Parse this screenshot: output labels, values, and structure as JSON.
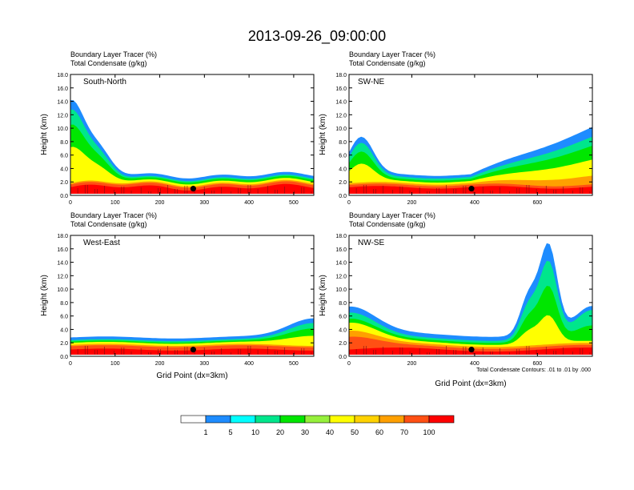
{
  "figure": {
    "title": "2013-09-26_09:00:00",
    "footnote": "Total Condensate Contours: .01 to .01 by .000"
  },
  "colorbar": {
    "labels": [
      "1",
      "5",
      "10",
      "20",
      "30",
      "40",
      "50",
      "60",
      "70",
      "100"
    ],
    "colors": [
      "#ffffff",
      "#1e8cff",
      "#00ffff",
      "#00e68c",
      "#00e600",
      "#96f03c",
      "#ffff00",
      "#ffd200",
      "#ffa000",
      "#ff5014",
      "#ff0000"
    ]
  },
  "chart_data": [
    {
      "type": "heatmap",
      "name": "South-North",
      "title_lines": [
        "Boundary Layer Tracer   (%)",
        "Total Condensate   (g/kg)"
      ],
      "ylabel": "Height (km)",
      "xlabel": "",
      "xlim": [
        0,
        545
      ],
      "ylim": [
        0,
        18
      ],
      "xticks": [
        0,
        100,
        200,
        300,
        400,
        500
      ],
      "yticks": [
        "0.0",
        "2.0",
        "4.0",
        "6.0",
        "8.0",
        "10.0",
        "12.0",
        "14.0",
        "16.0",
        "18.0"
      ],
      "marker_x": 275,
      "marker_y": 1.0
    },
    {
      "type": "heatmap",
      "name": "SW-NE",
      "title_lines": [
        "Boundary Layer Tracer   (%)",
        "Total Condensate   (g/kg)"
      ],
      "ylabel": "Height (km)",
      "xlabel": "",
      "xlim": [
        0,
        775
      ],
      "ylim": [
        0,
        18
      ],
      "xticks": [
        0,
        200,
        400,
        600
      ],
      "yticks": [
        "0.0",
        "2.0",
        "4.0",
        "6.0",
        "8.0",
        "10.0",
        "12.0",
        "14.0",
        "16.0",
        "18.0"
      ],
      "marker_x": 390,
      "marker_y": 1.0
    },
    {
      "type": "heatmap",
      "name": "West-East",
      "title_lines": [
        "Boundary Layer Tracer   (%)",
        "Total Condensate   (g/kg)"
      ],
      "ylabel": "Height (km)",
      "xlabel": "Grid Point (dx=3km)",
      "xlim": [
        0,
        545
      ],
      "ylim": [
        0,
        18
      ],
      "xticks": [
        0,
        100,
        200,
        300,
        400,
        500
      ],
      "yticks": [
        "0.0",
        "2.0",
        "4.0",
        "6.0",
        "8.0",
        "10.0",
        "12.0",
        "14.0",
        "16.0",
        "18.0"
      ],
      "marker_x": 275,
      "marker_y": 1.0
    },
    {
      "type": "heatmap",
      "name": "NW-SE",
      "title_lines": [
        "Boundary Layer Tracer   (%)",
        "Total Condensate   (g/kg)"
      ],
      "ylabel": "Height (km)",
      "xlabel": "Grid Point (dx=3km)",
      "xlim": [
        0,
        775
      ],
      "ylim": [
        0,
        18
      ],
      "xticks": [
        0,
        200,
        400,
        600
      ],
      "yticks": [
        "0.0",
        "2.0",
        "4.0",
        "6.0",
        "8.0",
        "10.0",
        "12.0",
        "14.0",
        "16.0",
        "18.0"
      ],
      "marker_x": 390,
      "marker_y": 1.0
    }
  ]
}
